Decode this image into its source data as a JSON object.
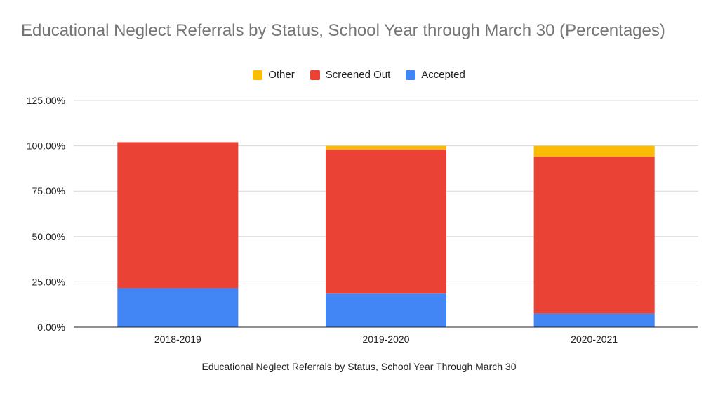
{
  "chart_data": {
    "type": "bar",
    "stacked": true,
    "title": "Educational Neglect Referrals by Status, School Year through March 30 (Percentages)",
    "xlabel": "Educational Neglect Referrals by Status, School Year Through March 30",
    "ylabel": "",
    "categories": [
      "2018-2019",
      "2019-2020",
      "2020-2021"
    ],
    "ylim": [
      0,
      125
    ],
    "yticks": [
      "0.00%",
      "25.00%",
      "50.00%",
      "75.00%",
      "100.00%",
      "125.00%"
    ],
    "grid": true,
    "legend_position": "top",
    "series": [
      {
        "name": "Accepted",
        "color": "#4285f4",
        "values": [
          21.5,
          18.5,
          7.5
        ]
      },
      {
        "name": "Screened Out",
        "color": "#ea4335",
        "values": [
          80.5,
          79.5,
          86.5
        ]
      },
      {
        "name": "Other",
        "color": "#fbbc04",
        "values": [
          0,
          2,
          6
        ]
      }
    ],
    "legend_order": [
      "Other",
      "Screened Out",
      "Accepted"
    ]
  }
}
